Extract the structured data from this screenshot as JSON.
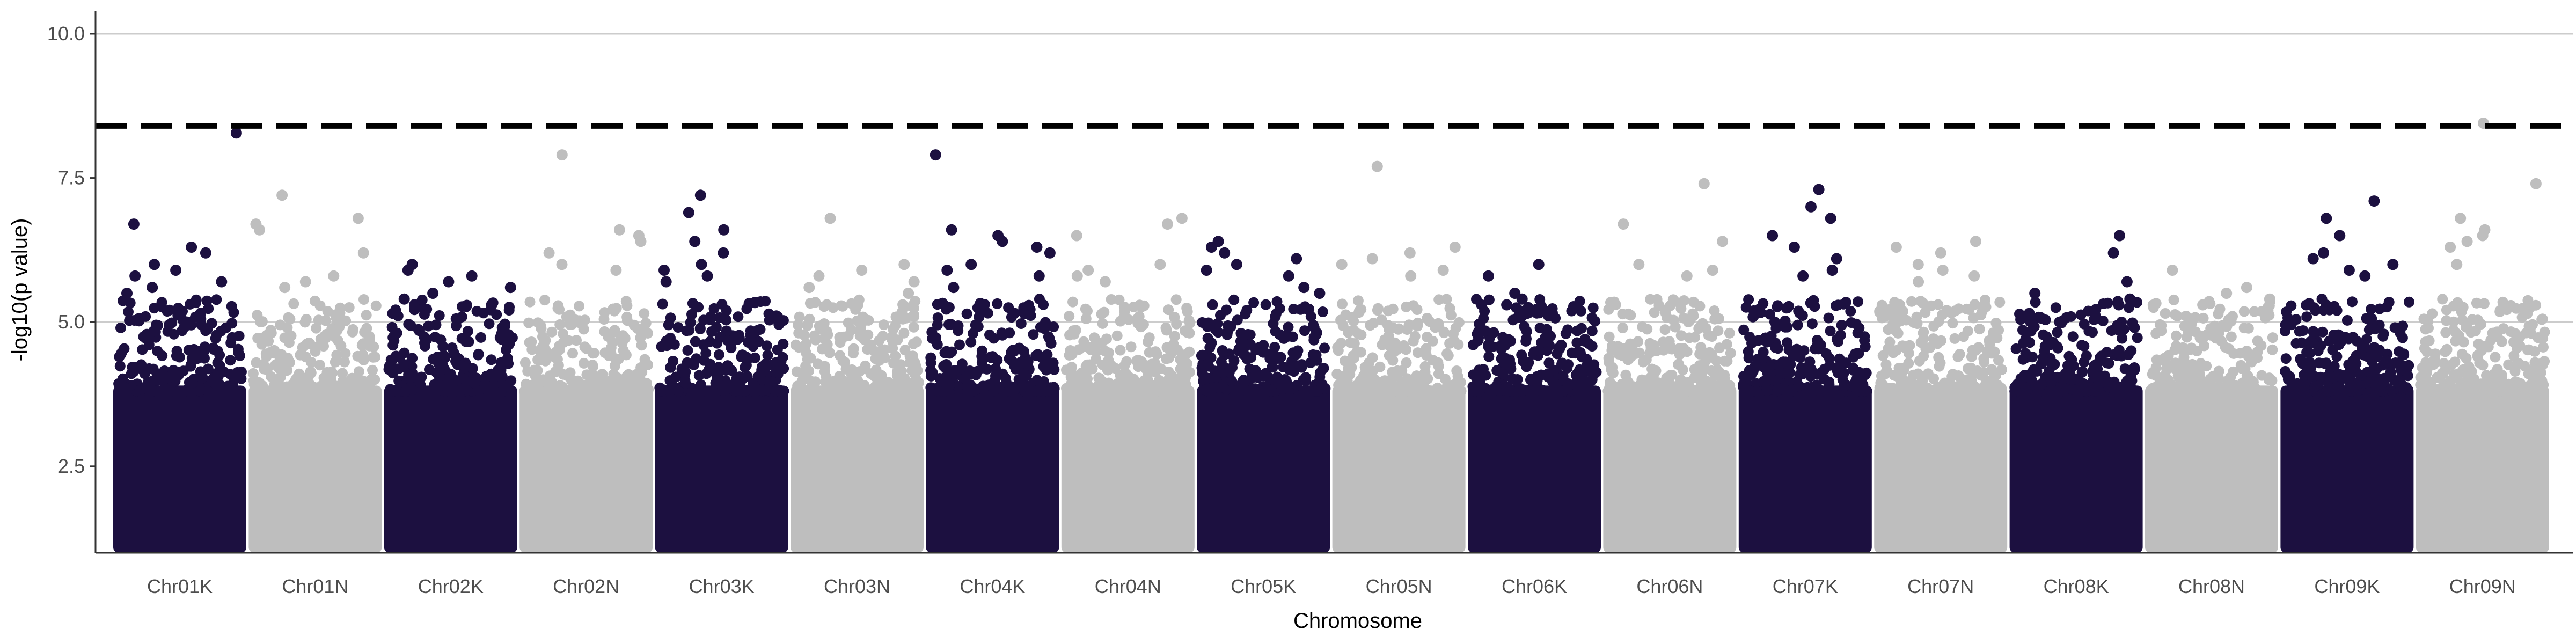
{
  "chart_data": {
    "type": "scatter",
    "title": "",
    "xlabel": "Chromosome",
    "ylabel": "-log10(p value)",
    "ylim": [
      1.0,
      10.4
    ],
    "yticks": [
      2.5,
      5.0,
      7.5,
      10.0
    ],
    "y_gridlines": [
      5.0,
      10.0
    ],
    "threshold": 8.4,
    "threshold_style": "dashed",
    "legend": "none",
    "categories": [
      "Chr01K",
      "Chr01N",
      "Chr02K",
      "Chr02N",
      "Chr03K",
      "Chr03N",
      "Chr04K",
      "Chr04N",
      "Chr05K",
      "Chr05N",
      "Chr06K",
      "Chr06N",
      "Chr07K",
      "Chr07N",
      "Chr08K",
      "Chr08N",
      "Chr09K",
      "Chr09N"
    ],
    "colors": {
      "odd": "#1c1040",
      "even": "#bebebe",
      "threshold": "#000000",
      "grid": "#cccccc",
      "axis": "#333333"
    },
    "series": [
      {
        "category": "Chr01K",
        "peak_points": [
          8.28,
          6.7,
          6.3,
          6.2,
          6.0,
          5.9,
          5.8,
          5.7,
          5.6,
          5.5
        ]
      },
      {
        "category": "Chr01N",
        "peak_points": [
          7.2,
          6.8,
          6.7,
          6.6,
          6.2,
          5.8,
          5.7,
          5.6
        ]
      },
      {
        "category": "Chr02K",
        "peak_points": [
          6.0,
          5.9,
          5.8,
          5.7,
          5.6,
          5.5,
          5.4,
          5.3
        ]
      },
      {
        "category": "Chr02N",
        "peak_points": [
          7.9,
          6.6,
          6.5,
          6.4,
          6.2,
          6.0,
          5.9
        ]
      },
      {
        "category": "Chr03K",
        "peak_points": [
          7.2,
          6.9,
          6.6,
          6.4,
          6.2,
          6.0,
          5.9,
          5.8,
          5.7
        ]
      },
      {
        "category": "Chr03N",
        "peak_points": [
          6.8,
          6.0,
          5.9,
          5.8,
          5.7,
          5.6,
          5.5
        ]
      },
      {
        "category": "Chr04K",
        "peak_points": [
          7.9,
          6.6,
          6.5,
          6.4,
          6.3,
          6.2,
          6.0,
          5.9,
          5.8,
          5.6
        ]
      },
      {
        "category": "Chr04N",
        "peak_points": [
          6.8,
          6.7,
          6.5,
          6.0,
          5.9,
          5.8,
          5.7
        ]
      },
      {
        "category": "Chr05K",
        "peak_points": [
          6.4,
          6.3,
          6.2,
          6.1,
          6.0,
          5.9,
          5.8,
          5.6,
          5.5
        ]
      },
      {
        "category": "Chr05N",
        "peak_points": [
          7.7,
          6.3,
          6.2,
          6.1,
          6.0,
          5.9,
          5.8
        ]
      },
      {
        "category": "Chr06K",
        "peak_points": [
          6.0,
          5.8,
          5.5,
          5.4,
          5.3,
          5.2
        ]
      },
      {
        "category": "Chr06N",
        "peak_points": [
          7.4,
          6.7,
          6.4,
          6.0,
          5.9,
          5.8
        ]
      },
      {
        "category": "Chr07K",
        "peak_points": [
          7.3,
          7.0,
          6.8,
          6.5,
          6.3,
          6.1,
          5.9,
          5.8
        ]
      },
      {
        "category": "Chr07N",
        "peak_points": [
          6.4,
          6.3,
          6.2,
          6.0,
          5.9,
          5.8,
          5.7
        ]
      },
      {
        "category": "Chr08K",
        "peak_points": [
          6.5,
          6.2,
          5.7,
          5.5,
          5.4,
          5.3
        ]
      },
      {
        "category": "Chr08N",
        "peak_points": [
          5.9,
          5.6,
          5.5,
          5.4,
          5.3
        ]
      },
      {
        "category": "Chr09K",
        "peak_points": [
          7.1,
          6.8,
          6.5,
          6.2,
          6.1,
          6.0,
          5.9,
          5.8
        ]
      },
      {
        "category": "Chr09N",
        "peak_points": [
          8.45,
          7.4,
          6.8,
          6.6,
          6.5,
          6.4,
          6.3,
          6.0
        ]
      }
    ]
  }
}
